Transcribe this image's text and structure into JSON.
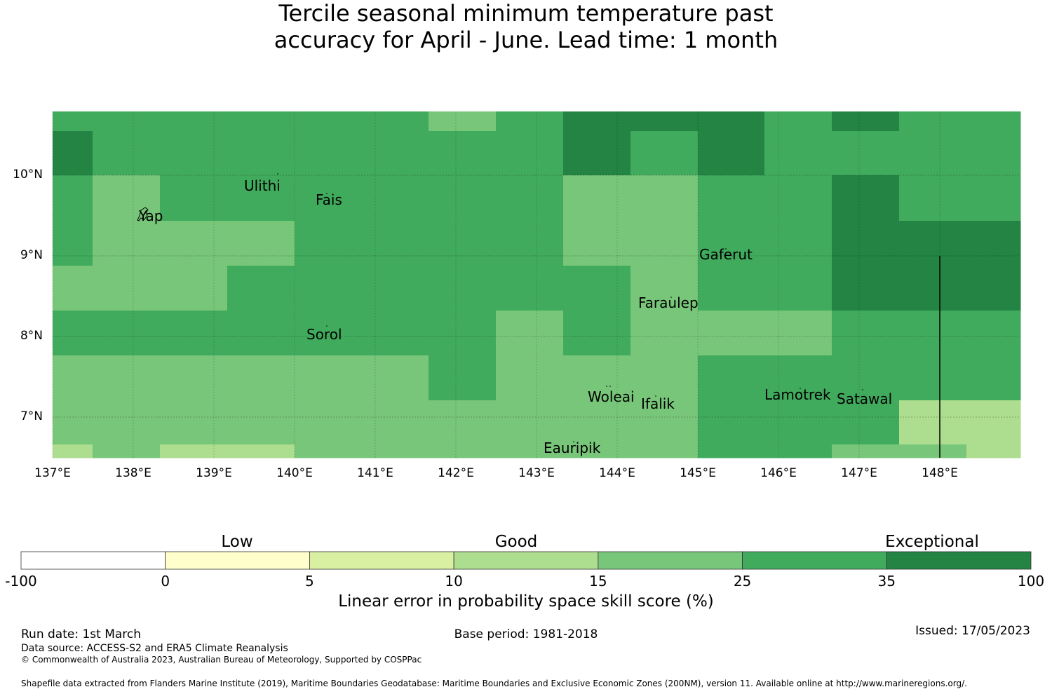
{
  "title": {
    "line1": "Tercile seasonal minimum temperature past",
    "line2": "accuracy for April - June. Lead time: 1 month"
  },
  "map": {
    "lon_range": [
      137.0,
      149.0
    ],
    "lat_range": [
      6.5,
      10.8
    ],
    "lon_ticks": [
      "137°E",
      "138°E",
      "139°E",
      "140°E",
      "141°E",
      "142°E",
      "143°E",
      "144°E",
      "145°E",
      "146°E",
      "147°E",
      "148°E"
    ],
    "lat_ticks": [
      "10°N",
      "9°N",
      "8°N",
      "7°N"
    ],
    "grid_lines": true,
    "colors": {
      "c15_25": "#78c679",
      "c25_35": "#41ab5d",
      "c35_100": "#238443",
      "c10_15": "#addd8e"
    },
    "places": [
      {
        "name": "Ulithi"
      },
      {
        "name": "Fais"
      },
      {
        "name": "Yap"
      },
      {
        "name": "Gaferut"
      },
      {
        "name": "Faraulep"
      },
      {
        "name": "Sorol"
      },
      {
        "name": "Woleai"
      },
      {
        "name": "Ifalik"
      },
      {
        "name": "Lamotrek"
      },
      {
        "name": "Satawal"
      },
      {
        "name": "Eauripik"
      }
    ]
  },
  "legend": {
    "categories": [
      "Low",
      "Good",
      "Exceptional"
    ],
    "bins": [
      "#ffffff",
      "#ffffcc",
      "#d9f0a3",
      "#addd8e",
      "#78c679",
      "#41ab5d",
      "#238443"
    ],
    "ticks": [
      "-100",
      "0",
      "5",
      "10",
      "15",
      "25",
      "35",
      "100"
    ],
    "label": "Linear error in probability space skill score (%)"
  },
  "footer": {
    "run_date": "Run date: 1st March",
    "base_period": "Base period: 1981-2018",
    "issued": "Issued: 17/05/2023",
    "data_source": "Data source: ACCESS-S2 and ERA5 Climate Reanalysis",
    "copyright": "© Commonwealth of Australia 2023, Australian Bureau of Meteorology, Supported by COSPPac",
    "shapefile": "Shapefile data extracted from Flanders Marine Institute (2019), Maritime Boundaries Geodatabase: Maritime Boundaries and Exclusive Economic Zones (200NM), version 11. Available online at http://www.marineregions.org/."
  }
}
